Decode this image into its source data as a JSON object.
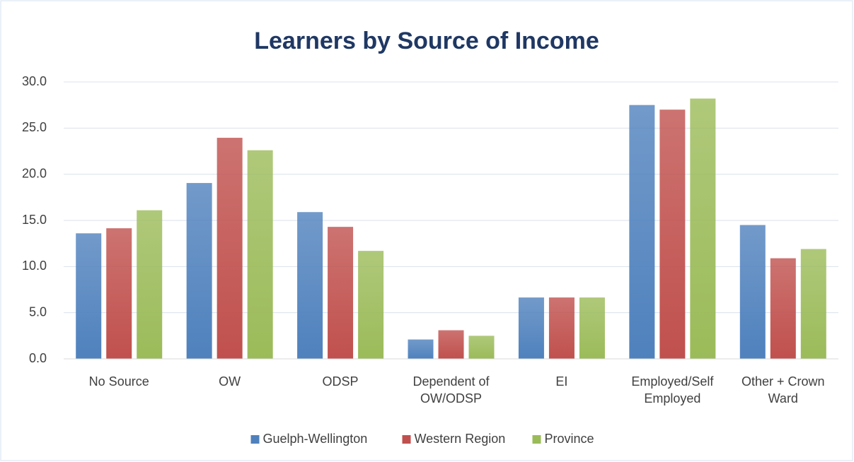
{
  "chart_data": {
    "type": "bar",
    "title": "Learners by Source of Income",
    "categories": [
      "No Source",
      "OW",
      "ODSP",
      "Dependent of OW/ODSP",
      "EI",
      "Employed/Self Employed",
      "Other + Crown Ward"
    ],
    "series": [
      {
        "name": "Guelph-Wellington",
        "color": "#4f81bd",
        "values": [
          13.6,
          19.05,
          15.9,
          2.1,
          6.65,
          27.5,
          14.5
        ]
      },
      {
        "name": "Western Region",
        "color": "#c0504d",
        "values": [
          14.15,
          23.95,
          14.3,
          3.1,
          6.65,
          27.0,
          10.9
        ]
      },
      {
        "name": "Province",
        "color": "#9bbb59",
        "values": [
          16.1,
          22.6,
          11.7,
          2.5,
          6.65,
          28.2,
          11.9
        ]
      }
    ],
    "ylim": [
      0,
      30
    ],
    "yticks": [
      {
        "value": 0,
        "label": "0.0"
      },
      {
        "value": 5,
        "label": "5.0"
      },
      {
        "value": 10,
        "label": "10.0"
      },
      {
        "value": 15,
        "label": "15.0"
      },
      {
        "value": 20,
        "label": "20.0"
      },
      {
        "value": 25,
        "label": "25.0"
      },
      {
        "value": 30,
        "label": "30.0"
      }
    ],
    "grid": true,
    "legend": "bottom"
  }
}
